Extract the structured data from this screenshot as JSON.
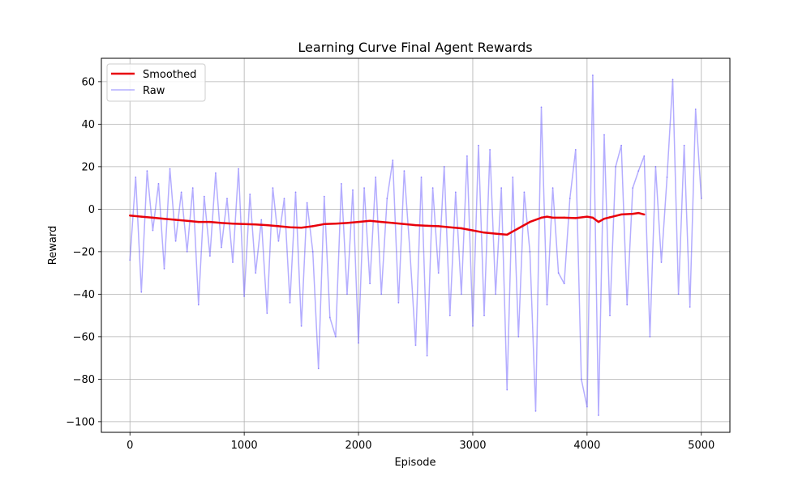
{
  "chart_data": {
    "type": "line",
    "title": "Learning Curve Final Agent Rewards",
    "xlabel": "Episode",
    "ylabel": "Reward",
    "xlim": [
      -250,
      5250
    ],
    "ylim": [
      -105,
      71
    ],
    "xticks": [
      0,
      1000,
      2000,
      3000,
      4000,
      5000
    ],
    "yticks": [
      -100,
      -80,
      -60,
      -40,
      -20,
      0,
      20,
      40,
      60
    ],
    "grid": true,
    "legend_position": "top-left",
    "series": [
      {
        "name": "Smoothed",
        "color": "#e8000b",
        "x": [
          0,
          100,
          200,
          300,
          400,
          500,
          600,
          700,
          800,
          900,
          1000,
          1100,
          1200,
          1300,
          1400,
          1500,
          1600,
          1700,
          1800,
          1900,
          2000,
          2100,
          2200,
          2300,
          2400,
          2500,
          2600,
          2700,
          2800,
          2900,
          3000,
          3100,
          3200,
          3300,
          3400,
          3500,
          3600,
          3650,
          3700,
          3800,
          3900,
          4000,
          4050,
          4100,
          4150,
          4200,
          4300,
          4400,
          4450,
          4500
        ],
        "y": [
          -3,
          -3.5,
          -4,
          -4.5,
          -5,
          -5.5,
          -6,
          -6,
          -6.5,
          -6.8,
          -7,
          -7.2,
          -7.5,
          -8,
          -8.5,
          -8.7,
          -8,
          -7,
          -6.8,
          -6.5,
          -6,
          -5.5,
          -6,
          -6.5,
          -7,
          -7.5,
          -7.8,
          -8,
          -8.5,
          -9,
          -10,
          -11,
          -11.5,
          -12,
          -9,
          -6,
          -4,
          -3.5,
          -4,
          -4,
          -4.2,
          -3.5,
          -4,
          -6,
          -4.5,
          -3.8,
          -2.5,
          -2.2,
          -1.8,
          -2.5
        ]
      },
      {
        "name": "Raw",
        "color": "#6a5cff",
        "x": [
          0,
          50,
          100,
          150,
          200,
          250,
          300,
          350,
          400,
          450,
          500,
          550,
          600,
          650,
          700,
          750,
          800,
          850,
          900,
          950,
          1000,
          1050,
          1100,
          1150,
          1200,
          1250,
          1300,
          1350,
          1400,
          1450,
          1500,
          1550,
          1600,
          1650,
          1700,
          1750,
          1800,
          1850,
          1900,
          1950,
          2000,
          2050,
          2100,
          2150,
          2200,
          2250,
          2300,
          2350,
          2400,
          2450,
          2500,
          2550,
          2600,
          2650,
          2700,
          2750,
          2800,
          2850,
          2900,
          2950,
          3000,
          3050,
          3100,
          3150,
          3200,
          3250,
          3300,
          3350,
          3400,
          3450,
          3500,
          3550,
          3600,
          3650,
          3700,
          3750,
          3800,
          3850,
          3900,
          3950,
          4000,
          4050,
          4100,
          4150,
          4200,
          4250,
          4300,
          4350,
          4400,
          4450,
          4500,
          4550,
          4600,
          4650,
          4700,
          4750,
          4800,
          4850,
          4900,
          4950,
          5000
        ],
        "y": [
          -24,
          15,
          -39,
          18,
          -10,
          12,
          -28,
          19,
          -15,
          8,
          -20,
          10,
          -45,
          6,
          -22,
          17,
          -18,
          5,
          -25,
          19,
          -41,
          7,
          -30,
          -5,
          -49,
          10,
          -15,
          5,
          -44,
          8,
          -55,
          3,
          -20,
          -75,
          6,
          -51,
          -60,
          12,
          -40,
          9,
          -63,
          10,
          -35,
          15,
          -40,
          5,
          23,
          -44,
          18,
          -20,
          -64,
          15,
          -69,
          10,
          -30,
          20,
          -50,
          8,
          -40,
          25,
          -55,
          30,
          -50,
          28,
          -40,
          10,
          -85,
          15,
          -60,
          8,
          -20,
          -95,
          48,
          -45,
          10,
          -30,
          -35,
          5,
          28,
          -80,
          -93,
          63,
          -97,
          35,
          -50,
          20,
          30,
          -45,
          10,
          18,
          25,
          -60,
          20,
          -25,
          15,
          61,
          -40,
          30,
          -46,
          47,
          5
        ]
      }
    ]
  }
}
